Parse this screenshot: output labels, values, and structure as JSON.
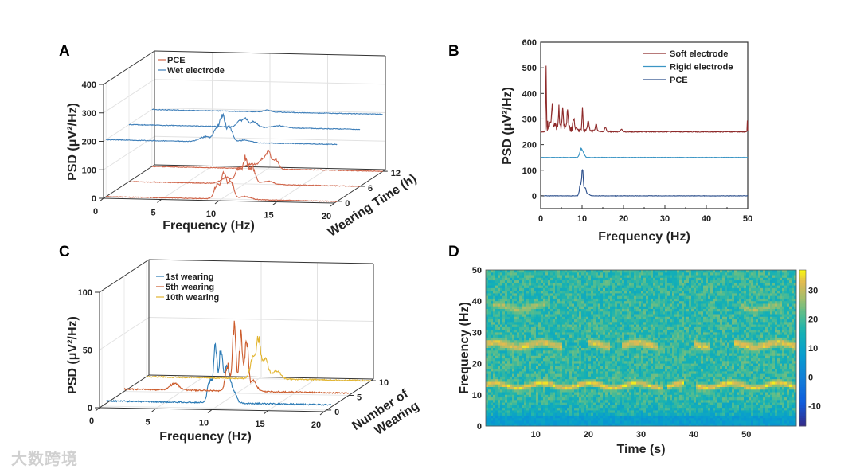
{
  "watermark": "大数跨境",
  "chart_data": [
    {
      "panel": "A",
      "type": "line",
      "projection": "3d-waterfall",
      "xlabel": "Frequency (Hz)",
      "ylabel": "PSD (μV²/Hz)",
      "zlabel": "Wearing Time (h)",
      "xlim": [
        0,
        20
      ],
      "ylim": [
        0,
        400
      ],
      "xticks": [
        "0",
        "5",
        "10",
        "15",
        "20"
      ],
      "yticks": [
        "0",
        "100",
        "200",
        "300",
        "400"
      ],
      "zticks": [
        "0",
        "6",
        "12"
      ],
      "legend": [
        "PCE",
        "Wet electrode"
      ],
      "legend_position": "top-left",
      "series": [
        {
          "name": "PCE",
          "wearing_time": 0,
          "color": "#d0654a",
          "baseline": 0,
          "peaks": [
            [
              9.6,
              55,
              0.25
            ],
            [
              10.2,
              98,
              0.2
            ],
            [
              10.8,
              70,
              0.25
            ],
            [
              12,
              12,
              0.5
            ]
          ]
        },
        {
          "name": "PCE",
          "wearing_time": 6,
          "color": "#d0654a",
          "baseline": 0,
          "peaks": [
            [
              9.5,
              60,
              0.25
            ],
            [
              10.1,
              100,
              0.2
            ],
            [
              10.7,
              65,
              0.25
            ],
            [
              8.5,
              25,
              0.5
            ],
            [
              12,
              12,
              0.5
            ]
          ]
        },
        {
          "name": "PCE",
          "wearing_time": 12,
          "color": "#d0654a",
          "baseline": 0,
          "peaks": [
            [
              9.6,
              35,
              0.3
            ],
            [
              10.1,
              62,
              0.2
            ],
            [
              10.7,
              40,
              0.25
            ],
            [
              8.6,
              18,
              0.5
            ]
          ]
        },
        {
          "name": "Wet electrode",
          "wearing_time": 0,
          "color": "#3f7fb9",
          "baseline": 200,
          "peaks": [
            [
              9.6,
              55,
              0.25
            ],
            [
              10.1,
              100,
              0.2
            ],
            [
              10.7,
              60,
              0.25
            ],
            [
              8.6,
              20,
              0.5
            ],
            [
              12,
              10,
              0.5
            ]
          ]
        },
        {
          "name": "Wet electrode",
          "wearing_time": 6,
          "color": "#3f7fb9",
          "baseline": 200,
          "peaks": [
            [
              9.6,
              25,
              0.25
            ],
            [
              10.1,
              30,
              0.2
            ],
            [
              10.8,
              22,
              0.3
            ],
            [
              13,
              8,
              0.5
            ]
          ]
        },
        {
          "name": "Wet electrode",
          "wearing_time": 12,
          "color": "#3f7fb9",
          "baseline": 200,
          "peaks": [
            [
              10,
              8,
              0.3
            ]
          ]
        }
      ]
    },
    {
      "panel": "B",
      "type": "line",
      "xlabel": "Frequency (Hz)",
      "ylabel": "PSD (μV²/Hz)",
      "xlim": [
        0,
        50
      ],
      "ylim": [
        -50,
        600
      ],
      "xticks": [
        "0",
        "10",
        "20",
        "30",
        "40",
        "50"
      ],
      "yticks": [
        "0",
        "100",
        "200",
        "300",
        "400",
        "500",
        "600"
      ],
      "legend": [
        "Soft electrode",
        "Rigid electrode",
        "PCE"
      ],
      "legend_position": "top-right",
      "series": [
        {
          "name": "Soft electrode",
          "color": "#8e2a2a",
          "baseline": 250,
          "peaks": [
            [
              1.3,
              275,
              0.08
            ],
            [
              2.8,
              90,
              0.15
            ],
            [
              4.4,
              80,
              0.15
            ],
            [
              5.3,
              90,
              0.15
            ],
            [
              6.5,
              75,
              0.15
            ],
            [
              8,
              50,
              0.2
            ],
            [
              10.1,
              95,
              0.12
            ],
            [
              11.5,
              40,
              0.2
            ],
            [
              13.4,
              28,
              0.2
            ],
            [
              15.6,
              18,
              0.2
            ],
            [
              19.5,
              10,
              0.3
            ],
            [
              49.9,
              50,
              0.05
            ]
          ],
          "noise_band": [
            1.5,
            20,
            45
          ]
        },
        {
          "name": "Rigid electrode",
          "color": "#3b95c4",
          "baseline": 150,
          "peaks": [
            [
              9.7,
              35,
              0.3
            ],
            [
              10.3,
              20,
              0.3
            ]
          ]
        },
        {
          "name": "PCE",
          "color": "#2c4f8c",
          "baseline": 0,
          "peaks": [
            [
              9.6,
              50,
              0.25
            ],
            [
              10.1,
              110,
              0.18
            ],
            [
              10.7,
              40,
              0.25
            ],
            [
              11.5,
              10,
              0.3
            ]
          ]
        }
      ]
    },
    {
      "panel": "C",
      "type": "line",
      "projection": "3d-waterfall",
      "xlabel": "Frequency (Hz)",
      "ylabel": "PSD (μV²/Hz)",
      "zlabel": "Number of Wearing",
      "xlim": [
        0,
        20
      ],
      "ylim": [
        0,
        100
      ],
      "xticks": [
        "0",
        "5",
        "10",
        "15",
        "20"
      ],
      "yticks": [
        "0",
        "50",
        "100"
      ],
      "zticks": [
        "0",
        "5",
        "10"
      ],
      "legend": [
        "1st wearing",
        "5th wearing",
        "10th wearing"
      ],
      "legend_position": "top-left",
      "series": [
        {
          "name": "1st wearing",
          "wearing": 1,
          "color": "#2a7ab5",
          "baseline": 2,
          "peaks": [
            [
              9.2,
              22,
              0.2
            ],
            [
              9.7,
              60,
              0.15
            ],
            [
              10.2,
              55,
              0.15
            ],
            [
              10.7,
              35,
              0.2
            ],
            [
              11.2,
              15,
              0.3
            ]
          ]
        },
        {
          "name": "5th wearing",
          "wearing": 5,
          "color": "#cc5b2b",
          "baseline": 2,
          "peaks": [
            [
              4.5,
              6,
              0.4
            ],
            [
              9.2,
              25,
              0.2
            ],
            [
              9.8,
              65,
              0.15
            ],
            [
              10.4,
              55,
              0.15
            ],
            [
              10.9,
              50,
              0.15
            ],
            [
              11.5,
              10,
              0.3
            ]
          ]
        },
        {
          "name": "10th wearing",
          "wearing": 10,
          "color": "#e2b530",
          "baseline": 0,
          "peaks": [
            [
              9.5,
              20,
              0.25
            ],
            [
              10,
              37,
              0.18
            ],
            [
              10.6,
              20,
              0.25
            ],
            [
              11.6,
              8,
              0.35
            ]
          ]
        }
      ]
    },
    {
      "panel": "D",
      "type": "heatmap",
      "xlabel": "Time (s)",
      "ylabel": "Frequency (Hz)",
      "xlim": [
        0.5,
        59.5
      ],
      "ylim": [
        0,
        50
      ],
      "xticks": [
        "10",
        "20",
        "30",
        "40",
        "50"
      ],
      "yticks": [
        "0",
        "10",
        "20",
        "30",
        "40",
        "50"
      ],
      "colorbar": {
        "range": [
          -17,
          37
        ],
        "ticks": [
          "30",
          "20",
          "10",
          "0",
          "-10"
        ],
        "colormap": "parula"
      },
      "background_level": 18,
      "low_freq_level": 5,
      "bands": [
        {
          "freq": 13,
          "level": 35,
          "segments": [
            [
              0.5,
              34
            ],
            [
              35,
              38
            ],
            [
              40.5,
              59.5
            ]
          ]
        },
        {
          "freq": 26,
          "level": 34,
          "segments": [
            [
              0.5,
              15
            ],
            [
              20,
              24
            ],
            [
              26.5,
              33
            ],
            [
              40,
              43
            ],
            [
              47.5,
              59.5
            ]
          ]
        },
        {
          "freq": 38,
          "level": 30,
          "segments": [
            [
              2,
              12
            ],
            [
              49,
              57
            ]
          ]
        }
      ]
    }
  ],
  "panels": {
    "A": "A",
    "B": "B",
    "C": "C",
    "D": "D"
  }
}
